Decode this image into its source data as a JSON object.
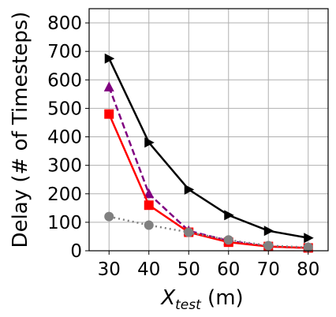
{
  "chart_data": {
    "type": "line",
    "title": "",
    "xlabel": {
      "main": "X",
      "subscript": "test",
      "suffix": " (m)"
    },
    "ylabel": "Delay (# of Timesteps)",
    "x": [
      30,
      40,
      50,
      60,
      70,
      80
    ],
    "xlim": [
      25,
      85
    ],
    "ylim": [
      0,
      850
    ],
    "xticks": [
      30,
      40,
      50,
      60,
      70,
      80
    ],
    "yticks": [
      0,
      100,
      200,
      300,
      400,
      500,
      600,
      700,
      800
    ],
    "grid": true,
    "legend": "none",
    "series": [
      {
        "values": [
          675,
          380,
          215,
          125,
          70,
          45
        ],
        "color": "#000000",
        "marker": "triangle-right",
        "linestyle": "solid"
      },
      {
        "values": [
          575,
          200,
          70,
          35,
          15,
          10
        ],
        "color": "#800080",
        "marker": "triangle-up",
        "linestyle": "dashed"
      },
      {
        "values": [
          480,
          160,
          65,
          30,
          15,
          10
        ],
        "color": "#ff0000",
        "marker": "square",
        "linestyle": "solid"
      },
      {
        "values": [
          120,
          90,
          65,
          38,
          18,
          12
        ],
        "color": "#808080",
        "marker": "circle",
        "linestyle": "dotted"
      }
    ]
  }
}
